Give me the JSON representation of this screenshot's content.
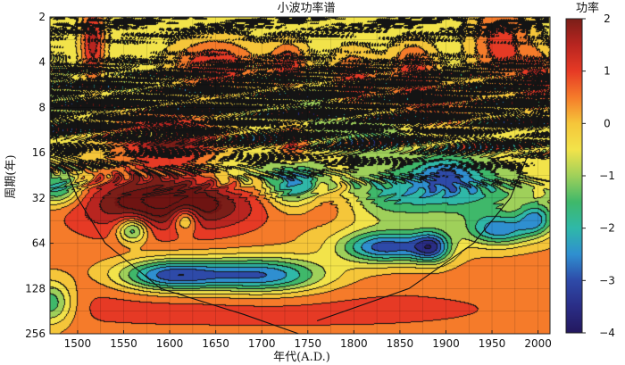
{
  "chart_data": {
    "type": "heatmap",
    "title": "小波功率谱",
    "xlabel": "年代(A.D.)",
    "ylabel": "周期(年)",
    "x_ticks": [
      1500,
      1550,
      1600,
      1650,
      1700,
      1750,
      1800,
      1850,
      1900,
      1950,
      2000
    ],
    "xlim": [
      1470,
      2013
    ],
    "y_ticks": [
      2,
      4,
      8,
      16,
      32,
      64,
      128,
      256
    ],
    "ylim": [
      2,
      256
    ],
    "y_scale": "log2",
    "y_inverted": true,
    "colorbar": {
      "title": "功率",
      "ticks": [
        2,
        1,
        0,
        -1,
        -2,
        -3,
        -4
      ],
      "range": [
        -4,
        2
      ],
      "colors": [
        "#7b1e18",
        "#b82520",
        "#e63a25",
        "#f57b2a",
        "#f5c63a",
        "#f2e34a",
        "#9fd05a",
        "#3fb86a",
        "#2fb8a8",
        "#2f8fd0",
        "#2e4aa8",
        "#2a2d86",
        "#23185e"
      ]
    },
    "grid": true,
    "cone_of_influence": {
      "left": [
        [
          1470,
          8
        ],
        [
          1480,
          16
        ],
        [
          1500,
          32
        ],
        [
          1530,
          64
        ],
        [
          1590,
          128
        ],
        [
          1680,
          190
        ],
        [
          1740,
          256
        ]
      ],
      "right": [
        [
          1760,
          210
        ],
        [
          1860,
          128
        ],
        [
          1930,
          64
        ],
        [
          1970,
          32
        ],
        [
          1990,
          16
        ],
        [
          2005,
          8
        ],
        [
          2013,
          6
        ]
      ]
    },
    "features": [
      {
        "x": 1601,
        "y": 32,
        "sx": 60,
        "sy": 0.45,
        "v": 1.9
      },
      {
        "x": 1530,
        "y": 40,
        "sx": 60,
        "sy": 0.6,
        "v": 1.1
      },
      {
        "x": 1650,
        "y": 40,
        "sx": 60,
        "sy": 0.5,
        "v": 1.2
      },
      {
        "x": 1615,
        "y": 13,
        "sx": 35,
        "sy": 0.35,
        "v": 1.7
      },
      {
        "x": 1575,
        "y": 12,
        "sx": 35,
        "sy": 0.4,
        "v": 1.0
      },
      {
        "x": 1734,
        "y": 14,
        "sx": 12,
        "sy": 0.35,
        "v": 1.6
      },
      {
        "x": 1517,
        "y": 3,
        "sx": 10,
        "sy": 0.7,
        "v": 1.8
      },
      {
        "x": 1650,
        "y": 4.3,
        "sx": 35,
        "sy": 0.45,
        "v": 1.7
      },
      {
        "x": 1730,
        "y": 4.3,
        "sx": 15,
        "sy": 0.4,
        "v": 1.5
      },
      {
        "x": 1800,
        "y": 5.5,
        "sx": 20,
        "sy": 0.5,
        "v": 1.5
      },
      {
        "x": 1865,
        "y": 4.5,
        "sx": 18,
        "sy": 0.45,
        "v": 1.4
      },
      {
        "x": 1960,
        "y": 3,
        "sx": 25,
        "sy": 0.7,
        "v": 1.3
      },
      {
        "x": 2000,
        "y": 5.6,
        "sx": 14,
        "sy": 0.45,
        "v": 1.7
      },
      {
        "x": 1890,
        "y": 8,
        "sx": 40,
        "sy": 0.4,
        "v": 0.9
      },
      {
        "x": 1800,
        "y": 180,
        "sx": 150,
        "sy": 0.35,
        "v": 0.9
      },
      {
        "x": 1560,
        "y": 165,
        "sx": 110,
        "sy": 0.35,
        "v": 0.9
      },
      {
        "x": 1980,
        "y": 50,
        "sx": 30,
        "sy": 0.4,
        "v": 0.8
      },
      {
        "x": 1770,
        "y": 36,
        "sx": 30,
        "sy": 0.35,
        "v": 0.8
      },
      {
        "x": 1835,
        "y": 68,
        "sx": 35,
        "sy": 0.25,
        "v": -3.6
      },
      {
        "x": 1885,
        "y": 68,
        "sx": 15,
        "sy": 0.25,
        "v": -3.0
      },
      {
        "x": 1960,
        "y": 52,
        "sx": 25,
        "sy": 0.25,
        "v": -3.5
      },
      {
        "x": 1998,
        "y": 44,
        "sx": 14,
        "sy": 0.25,
        "v": -3.0
      },
      {
        "x": 1735,
        "y": 26,
        "sx": 20,
        "sy": 0.35,
        "v": -3.5
      },
      {
        "x": 1700,
        "y": 105,
        "sx": 50,
        "sy": 0.28,
        "v": -3.3
      },
      {
        "x": 1600,
        "y": 105,
        "sx": 40,
        "sy": 0.25,
        "v": -3.4
      },
      {
        "x": 1480,
        "y": 28,
        "sx": 18,
        "sy": 0.25,
        "v": -3.2
      },
      {
        "x": 1850,
        "y": 30,
        "sx": 45,
        "sy": 0.4,
        "v": -2.2
      },
      {
        "x": 1900,
        "y": 22,
        "sx": 25,
        "sy": 0.3,
        "v": -2.5
      },
      {
        "x": 1940,
        "y": 30,
        "sx": 35,
        "sy": 0.4,
        "v": -1.8
      },
      {
        "x": 1560,
        "y": 52,
        "sx": 12,
        "sy": 0.2,
        "v": -3.0
      },
      {
        "x": 1617,
        "y": 44,
        "sx": 10,
        "sy": 0.2,
        "v": -2.6
      },
      {
        "x": 1670,
        "y": 22,
        "sx": 25,
        "sy": 0.3,
        "v": -1.5
      },
      {
        "x": 1820,
        "y": 12,
        "sx": 30,
        "sy": 0.35,
        "v": -1.6
      },
      {
        "x": 1760,
        "y": 8,
        "sx": 25,
        "sy": 0.4,
        "v": -1.2
      },
      {
        "x": 1470,
        "y": 160,
        "sx": 18,
        "sy": 0.35,
        "v": -2.2
      }
    ],
    "hf_bands": [
      {
        "y_center": 2.8,
        "y_width": 1.1,
        "amp": 2.7
      },
      {
        "y_center": 5.5,
        "y_width": 0.9,
        "amp": 2.2
      },
      {
        "y_center": 11,
        "y_width": 0.8,
        "amp": 1.6
      }
    ],
    "base_profile": [
      [
        2,
        -0.6
      ],
      [
        8,
        -0.8
      ],
      [
        16,
        -0.4
      ],
      [
        32,
        -0.5
      ],
      [
        64,
        0.2
      ],
      [
        128,
        0.6
      ],
      [
        256,
        0.5
      ]
    ]
  }
}
